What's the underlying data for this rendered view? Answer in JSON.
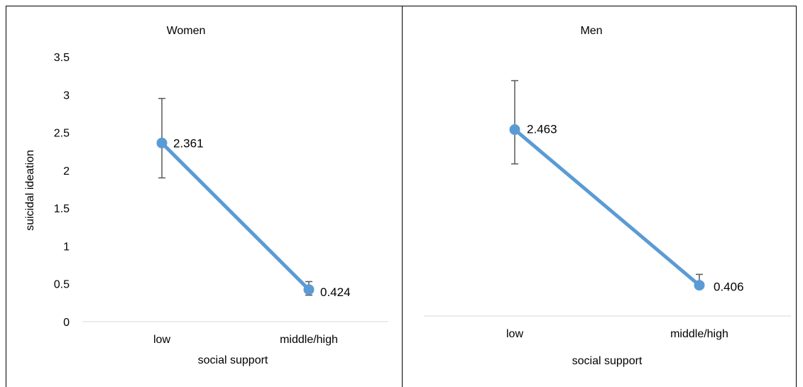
{
  "chart_data": [
    {
      "type": "line",
      "title": "Women",
      "xlabel": "social support",
      "ylabel": "suicidal ideation",
      "categories": [
        "low",
        "middle/high"
      ],
      "series": [
        {
          "values": [
            2.361,
            0.424
          ],
          "error_low": [
            1.9,
            0.35
          ],
          "error_high": [
            2.95,
            0.53
          ],
          "color": "#5B9BD5"
        }
      ],
      "data_labels": [
        "2.361",
        "0.424"
      ],
      "ylim": [
        0,
        3.5
      ],
      "yticks": [
        "0",
        "0.5",
        "1",
        "1.5",
        "2",
        "2.5",
        "3",
        "3.5"
      ],
      "grid": false
    },
    {
      "type": "line",
      "title": "Men",
      "xlabel": "social support",
      "ylabel": "",
      "categories": [
        "low",
        "middle/high"
      ],
      "series": [
        {
          "values": [
            2.463,
            0.406
          ],
          "error_low": [
            2.01,
            0.36
          ],
          "error_high": [
            3.11,
            0.55
          ],
          "color": "#5B9BD5"
        }
      ],
      "data_labels": [
        "2.463",
        "0.406"
      ],
      "ylim": [
        0,
        3.5
      ],
      "yticks": [],
      "grid": false
    }
  ]
}
